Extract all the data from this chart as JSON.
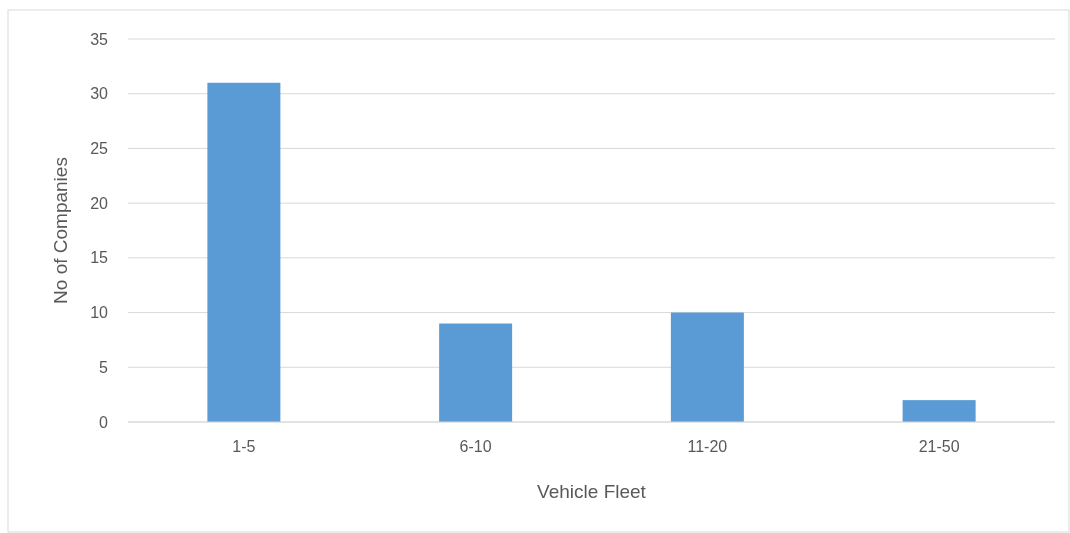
{
  "chart_data": {
    "type": "bar",
    "xlabel": "Vehicle Fleet",
    "ylabel": "No of Companies",
    "categories": [
      "1-5",
      "6-10",
      "11-20",
      "21-50"
    ],
    "values": [
      31,
      9,
      10,
      2
    ],
    "color": "#5b9bd5",
    "ylim": [
      0,
      35
    ],
    "yticks": [
      0,
      5,
      10,
      15,
      20,
      25,
      30,
      35
    ],
    "grid": "y"
  }
}
